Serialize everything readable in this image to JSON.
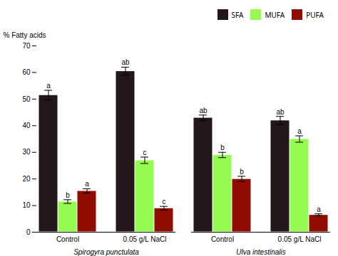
{
  "chart_data": {
    "type": "bar",
    "ylabel": "% Fatty acids",
    "categories": [
      "Control",
      "0.05 g/L NaCl",
      "Control",
      "0.05 g/L NaCl"
    ],
    "group_labels": [
      "Spirogyra punctulata",
      "Ulva intestinalis"
    ],
    "series": [
      {
        "name": "SFA",
        "values": [
          51.5,
          60.5,
          43.0,
          42.0
        ],
        "errors": [
          1.8,
          1.5,
          1.0,
          1.5
        ],
        "sig_labels": [
          "a",
          "ab",
          "ab",
          "ab"
        ]
      },
      {
        "name": "MUFA",
        "values": [
          11.5,
          27.0,
          29.0,
          35.0
        ],
        "errors": [
          0.7,
          1.2,
          1.0,
          1.2
        ],
        "sig_labels": [
          "b",
          "c",
          "b",
          "a"
        ]
      },
      {
        "name": "PUFA",
        "values": [
          15.5,
          9.0,
          20.0,
          6.5
        ],
        "errors": [
          0.8,
          0.7,
          1.0,
          0.4
        ],
        "sig_labels": [
          "a",
          "c",
          "b",
          "a"
        ]
      }
    ],
    "ylim": [
      0,
      70
    ],
    "yticks": [
      0,
      10,
      20,
      30,
      40,
      50,
      60,
      70
    ],
    "grid": false,
    "legend": "upper right"
  }
}
